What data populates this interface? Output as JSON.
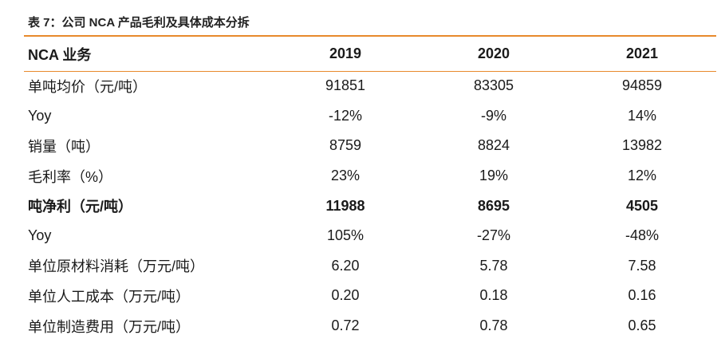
{
  "caption": "表 7：公司 NCA 产品毛利及具体成本分拆",
  "header": {
    "label": "NCA 业务",
    "years": [
      "2019",
      "2020",
      "2021"
    ]
  },
  "rows": [
    {
      "label": "单吨均价（元/吨）",
      "values": [
        "91851",
        "83305",
        "94859"
      ]
    },
    {
      "label": "Yoy",
      "values": [
        "-12%",
        "-9%",
        "14%"
      ]
    },
    {
      "label": "销量（吨）",
      "values": [
        "8759",
        "8824",
        "13982"
      ]
    },
    {
      "label": "毛利率（%）",
      "values": [
        "23%",
        "19%",
        "12%"
      ]
    },
    {
      "label": "吨净利（元/吨）",
      "values": [
        "11988",
        "8695",
        "4505"
      ]
    },
    {
      "label": "Yoy",
      "values": [
        "105%",
        "-27%",
        "-48%"
      ]
    },
    {
      "label": "单位原材料消耗（万元/吨）",
      "values": [
        "6.20",
        "5.78",
        "7.58"
      ]
    },
    {
      "label": "单位人工成本（万元/吨）",
      "values": [
        "0.20",
        "0.18",
        "0.16"
      ]
    },
    {
      "label": "单位制造费用（万元/吨）",
      "values": [
        "0.72",
        "0.78",
        "0.65"
      ]
    }
  ],
  "colors": {
    "accent_rule": "#e8892c"
  }
}
